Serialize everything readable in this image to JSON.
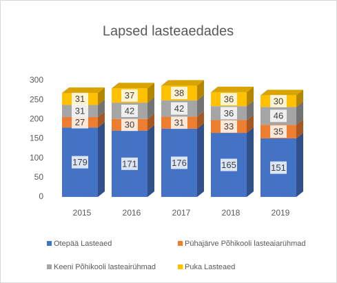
{
  "chart_data": {
    "type": "bar3d_stacked",
    "title": "Lapsed lasteaedades",
    "categories": [
      "2015",
      "2016",
      "2017",
      "2018",
      "2019"
    ],
    "series": [
      {
        "name": "Otepää Lasteaed",
        "color": "#4472c4",
        "values": [
          179,
          171,
          176,
          165,
          151
        ]
      },
      {
        "name": "Pühajärve Põhikooli lasteaiarühmad",
        "color": "#ed7d31",
        "values": [
          27,
          30,
          31,
          33,
          35
        ]
      },
      {
        "name": "Keeni Põhikooli lasteairühmad",
        "color": "#a5a5a5",
        "values": [
          31,
          42,
          42,
          36,
          46
        ]
      },
      {
        "name": "Puka Lasteaed",
        "color": "#ffc000",
        "values": [
          31,
          37,
          38,
          36,
          30
        ]
      }
    ],
    "ylim": [
      0,
      300
    ],
    "yticks": [
      0,
      50,
      100,
      150,
      200,
      250,
      300
    ],
    "grid": false,
    "legend": "bottom"
  }
}
